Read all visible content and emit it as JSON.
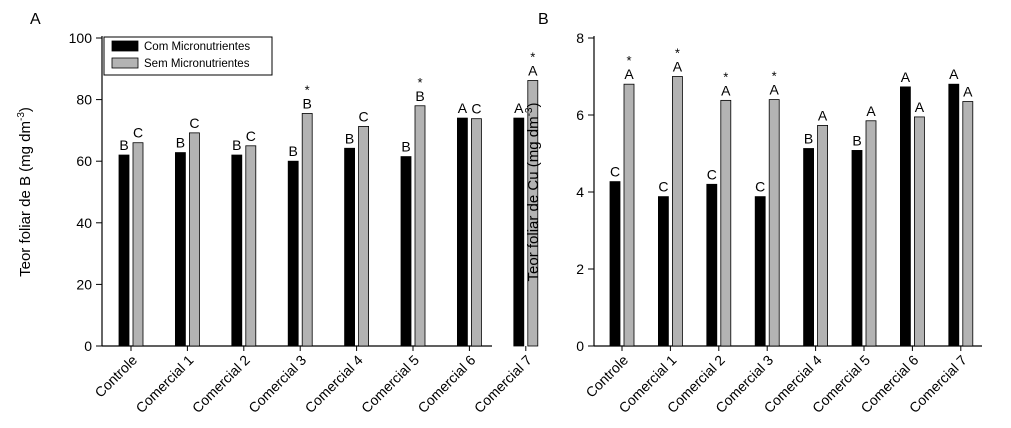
{
  "chart_data": [
    {
      "panel_label": "A",
      "type": "bar",
      "title": "",
      "xlabel": "",
      "ylabel_main": "Teor foliar de B (mg dm",
      "ylabel_sup": "-3",
      "ylabel_close": ")",
      "ylim": [
        0,
        100
      ],
      "yticks": [
        0,
        20,
        40,
        60,
        80,
        100
      ],
      "grid": false,
      "legend_position": "top-left",
      "categories": [
        "Controle",
        "Comercial 1",
        "Comercial 2",
        "Comercial 3",
        "Comercial 4",
        "Comercial 5",
        "Comercial 6",
        "Comercial 7"
      ],
      "series": [
        {
          "name": "Com Micronutrientes",
          "color": "#000000",
          "values": [
            62,
            62.8,
            62,
            60,
            64.2,
            61.5,
            74,
            74
          ],
          "letters": [
            "B",
            "B",
            "B",
            "B",
            "B",
            "B",
            "A",
            "A"
          ]
        },
        {
          "name": "Sem Micronutrientes",
          "color": "#b3b3b3",
          "values": [
            66,
            69.2,
            65,
            75.5,
            71.3,
            78,
            73.8,
            86.2
          ],
          "letters": [
            "C",
            "C",
            "C",
            "B",
            "C",
            "B",
            "C",
            "A"
          ],
          "stars": [
            false,
            false,
            false,
            true,
            false,
            true,
            false,
            true
          ]
        }
      ],
      "star_symbol": "*"
    },
    {
      "panel_label": "B",
      "type": "bar",
      "title": "",
      "xlabel": "",
      "ylabel_main": "Teor foliar de Cu (mg dm",
      "ylabel_sup": "-3",
      "ylabel_close": ")",
      "ylim": [
        0,
        8
      ],
      "yticks": [
        0,
        2,
        4,
        6,
        8
      ],
      "grid": false,
      "categories": [
        "Controle",
        "Comercial 1",
        "Comercial 2",
        "Comercial 3",
        "Comercial 4",
        "Comercial 5",
        "Comercial 6",
        "Comercial 7"
      ],
      "series": [
        {
          "name": "Com Micronutrientes",
          "color": "#000000",
          "values": [
            4.27,
            3.88,
            4.2,
            3.88,
            5.13,
            5.08,
            6.73,
            6.8
          ],
          "letters": [
            "C",
            "C",
            "C",
            "C",
            "B",
            "B",
            "A",
            "A"
          ]
        },
        {
          "name": "Sem Micronutrientes",
          "color": "#b3b3b3",
          "values": [
            6.8,
            7.0,
            6.38,
            6.4,
            5.73,
            5.85,
            5.95,
            6.35
          ],
          "letters": [
            "A",
            "A",
            "A",
            "A",
            "A",
            "A",
            "A",
            "A"
          ],
          "stars": [
            true,
            true,
            true,
            true,
            false,
            false,
            false,
            false
          ]
        }
      ],
      "star_symbol": "*"
    }
  ]
}
